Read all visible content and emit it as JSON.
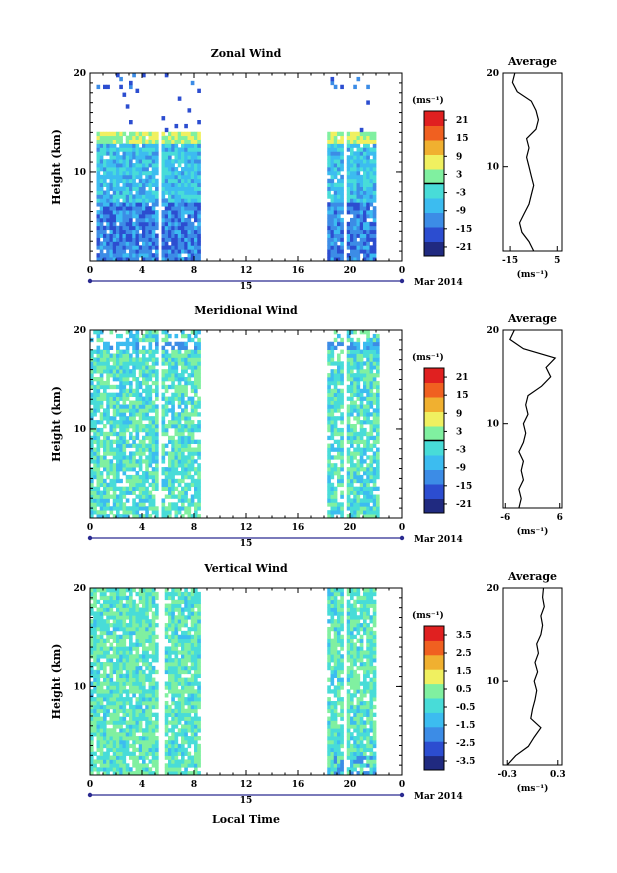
{
  "chart_data": [
    {
      "type": "heatmap",
      "title": "Zonal Wind",
      "ylabel": "Height (km)",
      "x_ticks": [
        "0",
        "4",
        "8",
        "12",
        "16",
        "20",
        "0"
      ],
      "y_ticks": [
        "10",
        "20"
      ],
      "ylim": [
        1,
        20
      ],
      "date_label": "15",
      "month_label": "Mar 2014",
      "unit_label": "(ms⁻¹)",
      "colorbar_ticks": [
        "21",
        "15",
        "9",
        "3",
        "-3",
        "-9",
        "-15",
        "-21"
      ],
      "colorbar_range": [
        -24,
        24
      ],
      "data_gaps": [
        [
          0,
          0.5
        ],
        [
          5.2,
          5.6
        ],
        [
          8.4,
          18.2
        ],
        [
          19.5,
          19.8
        ],
        [
          21.9,
          24
        ]
      ],
      "average_profile": {
        "title": "Average",
        "xlabel": "(ms⁻¹)",
        "x_ticks": [
          "-15",
          "5"
        ],
        "y_ticks": [
          "10",
          "20"
        ],
        "xlim": [
          -18,
          7
        ],
        "heights": [
          1,
          2,
          3,
          4,
          5,
          6,
          7,
          8,
          9,
          10,
          11,
          12,
          13,
          14,
          15,
          16,
          17,
          18,
          19,
          20
        ],
        "values": [
          -5,
          -7,
          -10,
          -11,
          -9,
          -7,
          -6,
          -5,
          -6,
          -7,
          -8,
          -7,
          -8,
          -4,
          -3,
          -4,
          -6,
          -12,
          -14,
          -13
        ]
      }
    },
    {
      "type": "heatmap",
      "title": "Meridional Wind",
      "ylabel": "Height (km)",
      "x_ticks": [
        "0",
        "4",
        "8",
        "12",
        "16",
        "20",
        "0"
      ],
      "y_ticks": [
        "10",
        "20"
      ],
      "ylim": [
        1,
        20
      ],
      "date_label": "15",
      "month_label": "Mar 2014",
      "unit_label": "(ms⁻¹)",
      "colorbar_ticks": [
        "21",
        "15",
        "9",
        "3",
        "-3",
        "-9",
        "-15",
        "-21"
      ],
      "colorbar_range": [
        -24,
        24
      ],
      "data_gaps": [
        [
          5.2,
          5.6
        ],
        [
          8.4,
          18.2
        ],
        [
          19.5,
          19.8
        ],
        [
          22.2,
          24
        ]
      ],
      "average_profile": {
        "title": "Average",
        "xlabel": "(ms⁻¹)",
        "x_ticks": [
          "-6",
          "6"
        ],
        "y_ticks": [
          "10",
          "20"
        ],
        "xlim": [
          -6.5,
          6.5
        ],
        "heights": [
          1,
          2,
          3,
          4,
          5,
          6,
          7,
          8,
          9,
          10,
          11,
          12,
          13,
          14,
          15,
          16,
          17,
          18,
          19,
          20
        ],
        "values": [
          -3,
          -2.5,
          -3,
          -2,
          -2.5,
          -2,
          -3,
          -2,
          -1.5,
          -2,
          -1,
          -1.5,
          -1,
          2,
          4,
          3,
          5,
          -2,
          -5,
          -4
        ]
      }
    },
    {
      "type": "heatmap",
      "title": "Vertical Wind",
      "ylabel": "Height (km)",
      "xlabel": "Local Time",
      "x_ticks": [
        "0",
        "4",
        "8",
        "12",
        "16",
        "20",
        "0"
      ],
      "y_ticks": [
        "10",
        "20"
      ],
      "ylim": [
        1,
        20
      ],
      "date_label": "15",
      "month_label": "Mar 2014",
      "unit_label": "(ms⁻¹)",
      "colorbar_ticks": [
        "3.5",
        "2.5",
        "1.5",
        "0.5",
        "-0.5",
        "-1.5",
        "-2.5",
        "-3.5"
      ],
      "colorbar_range": [
        -4,
        4
      ],
      "data_gaps": [
        [
          5.3,
          5.7
        ],
        [
          8.4,
          18.2
        ],
        [
          19.4,
          19.8
        ],
        [
          22.0,
          24
        ]
      ],
      "average_profile": {
        "title": "Average",
        "xlabel": "(ms⁻¹)",
        "x_ticks": [
          "-0.3",
          "0.3"
        ],
        "y_ticks": [
          "10",
          "20"
        ],
        "xlim": [
          -0.35,
          0.35
        ],
        "heights": [
          1,
          2,
          3,
          4,
          5,
          6,
          7,
          8,
          9,
          10,
          11,
          12,
          13,
          14,
          15,
          16,
          17,
          18,
          19,
          20
        ],
        "values": [
          -0.3,
          -0.2,
          -0.05,
          0.02,
          0.1,
          -0.02,
          0.0,
          0.03,
          0.05,
          0.02,
          0.06,
          0.03,
          0.07,
          0.05,
          0.1,
          0.12,
          0.1,
          0.14,
          0.12,
          0.13
        ]
      }
    }
  ],
  "colors": {
    "scale": [
      "#202a80",
      "#2c4dd0",
      "#3c8ce6",
      "#3cbcf0",
      "#48dcd8",
      "#80f0a0",
      "#f0f060",
      "#f0b030",
      "#f06020",
      "#e02020"
    ]
  }
}
